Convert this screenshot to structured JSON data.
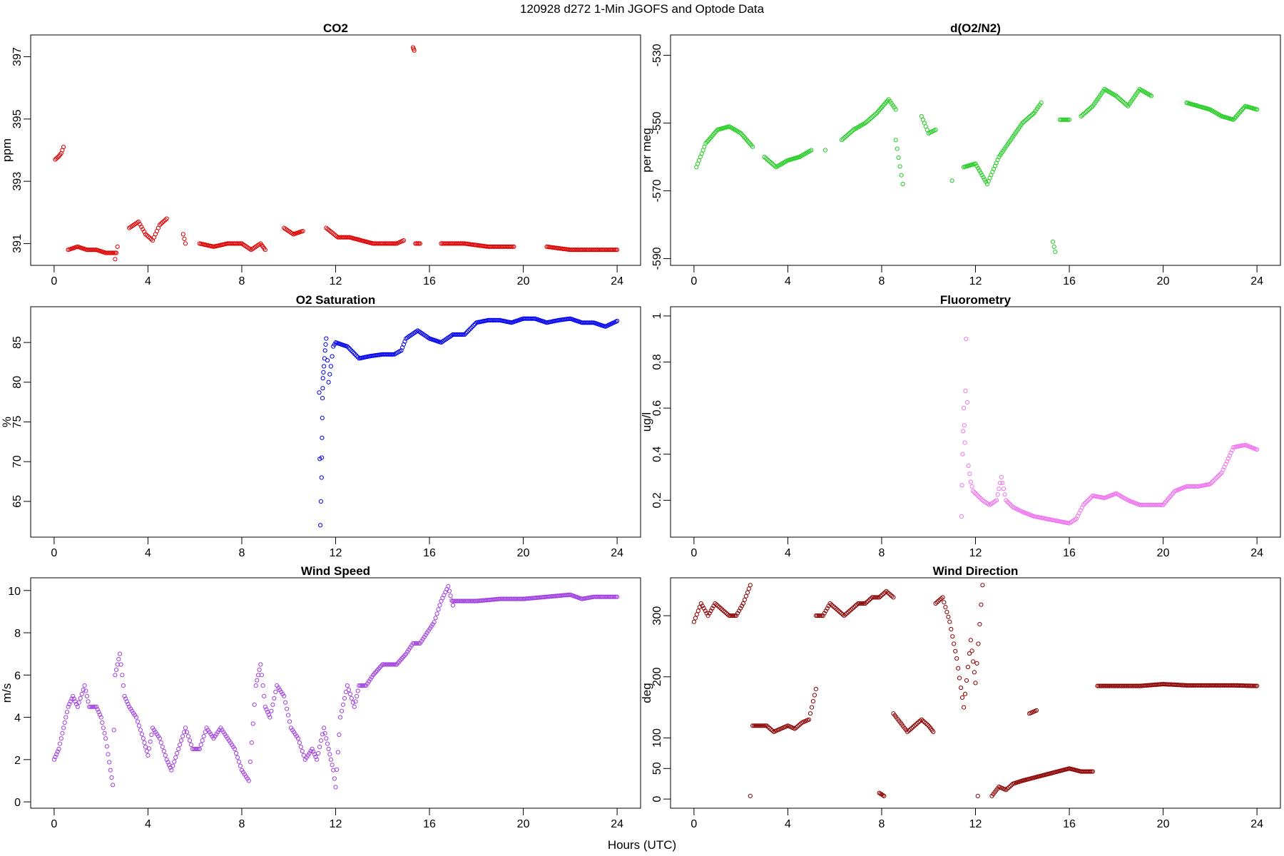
{
  "figure": {
    "title": "120928   d272   1-Min  JGOFS and Optode Data",
    "xlabel": "Hours (UTC)"
  },
  "chart_data": [
    {
      "type": "scatter",
      "title": "CO2",
      "ylabel": "ppm",
      "xlim": [
        -1,
        25
      ],
      "ylim": [
        390.3,
        397.7
      ],
      "xticks": [
        0,
        4,
        8,
        12,
        16,
        20,
        24
      ],
      "yticks": [
        391,
        393,
        395,
        397
      ],
      "color": "#dd0000",
      "rotate_y_ticks": true,
      "segments": [
        {
          "x": [
            0.05,
            0.2,
            0.3,
            0.4
          ],
          "y": [
            393.7,
            393.8,
            393.9,
            394.1
          ]
        },
        {
          "x": [
            0.6,
            1.0,
            1.4,
            1.8,
            2.2,
            2.6
          ],
          "y": [
            390.8,
            390.9,
            390.8,
            390.8,
            390.7,
            390.7
          ]
        },
        {
          "x": [
            2.6,
            2.7
          ],
          "y": [
            390.5,
            390.9
          ]
        },
        {
          "x": [
            3.2,
            3.6,
            3.9,
            4.2,
            4.5,
            4.8
          ],
          "y": [
            391.5,
            391.7,
            391.3,
            391.1,
            391.6,
            391.8
          ]
        },
        {
          "x": [
            5.5,
            5.6
          ],
          "y": [
            391.3,
            391.0
          ]
        },
        {
          "x": [
            6.2,
            6.8,
            7.4,
            8.0,
            8.4,
            8.8,
            9.0
          ],
          "y": [
            391.0,
            390.9,
            391.0,
            391.0,
            390.8,
            391.0,
            390.8
          ]
        },
        {
          "x": [
            9.8,
            10.2,
            10.6
          ],
          "y": [
            391.5,
            391.3,
            391.4
          ]
        },
        {
          "x": [
            11.6,
            12.1,
            12.6,
            13.1,
            13.6,
            14.1,
            14.6,
            14.9
          ],
          "y": [
            391.5,
            391.2,
            391.2,
            391.1,
            391.0,
            391.0,
            391.0,
            391.1
          ]
        },
        {
          "x": [
            15.3,
            15.35
          ],
          "y": [
            397.3,
            397.2
          ]
        },
        {
          "x": [
            15.4,
            15.6
          ],
          "y": [
            391.0,
            391.0
          ]
        },
        {
          "x": [
            16.5,
            17.5,
            18.5,
            19.6
          ],
          "y": [
            391.0,
            391.0,
            390.9,
            390.9
          ]
        },
        {
          "x": [
            21.0,
            22.0,
            23.0,
            24.0
          ],
          "y": [
            390.9,
            390.8,
            390.8,
            390.8
          ]
        }
      ]
    },
    {
      "type": "scatter",
      "title": "d(O2/N2)",
      "ylabel": "per meg",
      "xlim": [
        -1,
        25
      ],
      "ylim": [
        -592,
        -524
      ],
      "xticks": [
        0,
        4,
        8,
        12,
        16,
        20,
        24
      ],
      "yticks": [
        -590,
        -570,
        -550,
        -530
      ],
      "color": "#22cc22",
      "rotate_y_ticks": true,
      "segments": [
        {
          "x": [
            0.1,
            0.5,
            1.0,
            1.5,
            2.0,
            2.5
          ],
          "y": [
            -563,
            -556,
            -552,
            -551,
            -553,
            -557
          ]
        },
        {
          "x": [
            3.0,
            3.5,
            4.0,
            4.5,
            5.0
          ],
          "y": [
            -560,
            -563,
            -561,
            -560,
            -558
          ]
        },
        {
          "x": [
            5.6
          ],
          "y": [
            -558
          ]
        },
        {
          "x": [
            6.3,
            6.8,
            7.3,
            7.8,
            8.3,
            8.6
          ],
          "y": [
            -555,
            -552,
            -550,
            -547,
            -543,
            -546
          ]
        },
        {
          "x": [
            8.6,
            8.9
          ],
          "y": [
            -555,
            -568
          ]
        },
        {
          "x": [
            9.7,
            10.0,
            10.3
          ],
          "y": [
            -548,
            -553,
            -552
          ]
        },
        {
          "x": [
            11.0
          ],
          "y": [
            -567
          ]
        },
        {
          "x": [
            11.5,
            12.0,
            12.5,
            13.0,
            13.5,
            14.0,
            14.5,
            14.8
          ],
          "y": [
            -563,
            -562,
            -568,
            -560,
            -555,
            -550,
            -547,
            -544
          ]
        },
        {
          "x": [
            15.3,
            15.4
          ],
          "y": [
            -585,
            -588
          ]
        },
        {
          "x": [
            15.6,
            16.0
          ],
          "y": [
            -549,
            -549
          ]
        },
        {
          "x": [
            16.5,
            17.0,
            17.5,
            18.0,
            18.5,
            19.0,
            19.5
          ],
          "y": [
            -548,
            -545,
            -540,
            -542,
            -545,
            -540,
            -542
          ]
        },
        {
          "x": [
            21.0,
            21.5,
            22.0,
            22.5,
            23.0,
            23.5,
            24.0
          ],
          "y": [
            -544,
            -545,
            -546,
            -548,
            -549,
            -545,
            -546
          ]
        }
      ]
    },
    {
      "type": "scatter",
      "title": "O2 Saturation",
      "ylabel": "%",
      "xlim": [
        -1,
        25
      ],
      "ylim": [
        60.5,
        89.5
      ],
      "xticks": [
        0,
        4,
        8,
        12,
        16,
        20,
        24
      ],
      "yticks": [
        65,
        70,
        75,
        80,
        85
      ],
      "color": "#0000ee",
      "rotate_y_ticks": true,
      "segments": [
        {
          "x": [
            11.3,
            11.35,
            11.4,
            11.42,
            11.44,
            11.46,
            11.5,
            11.55,
            11.6,
            11.7,
            11.8,
            11.9,
            12.0,
            12.5,
            13.0,
            13.5,
            14.0,
            14.5,
            14.8,
            15.0,
            15.5,
            16.0,
            16.5,
            17.0,
            17.5,
            18.0,
            18.5,
            19.0,
            19.5,
            20.0,
            20.5,
            21.0,
            21.5,
            22.0,
            22.5,
            23.0,
            23.5,
            24.0
          ],
          "y": [
            78.7,
            62.0,
            68.0,
            73.0,
            78.0,
            80.5,
            82.0,
            84.0,
            85.5,
            80.0,
            82.0,
            84.5,
            85.0,
            84.5,
            83.0,
            83.3,
            83.5,
            83.5,
            84.0,
            85.5,
            86.5,
            85.5,
            85.0,
            86.0,
            86.0,
            87.5,
            87.8,
            87.8,
            87.5,
            88.0,
            88.0,
            87.5,
            87.8,
            88.0,
            87.5,
            87.5,
            87.0,
            87.7
          ]
        }
      ]
    },
    {
      "type": "scatter",
      "title": "Fluorometry",
      "ylabel": "ug/l",
      "xlim": [
        -1,
        25
      ],
      "ylim": [
        0.04,
        1.04
      ],
      "xticks": [
        0,
        4,
        8,
        12,
        16,
        20,
        24
      ],
      "yticks": [
        0.2,
        0.4,
        0.6,
        0.8,
        1.0
      ],
      "color": "#ee77ee",
      "rotate_y_ticks": true,
      "segments": [
        {
          "x": [
            11.4,
            11.45,
            11.5,
            11.55,
            11.6,
            11.7,
            11.8,
            11.9,
            12.0,
            12.3,
            12.6,
            12.9,
            13.1,
            13.3,
            13.6,
            14.0,
            14.5,
            15.0,
            15.5,
            16.0,
            16.3,
            16.6,
            17.0,
            17.5,
            18.0,
            18.5,
            19.0,
            19.5,
            20.0,
            20.5,
            21.0,
            21.5,
            22.0,
            22.5,
            23.0,
            23.5,
            24.0
          ],
          "y": [
            0.13,
            0.4,
            0.6,
            0.45,
            0.9,
            0.35,
            0.28,
            0.24,
            0.23,
            0.2,
            0.18,
            0.2,
            0.3,
            0.2,
            0.17,
            0.15,
            0.13,
            0.12,
            0.11,
            0.1,
            0.12,
            0.18,
            0.22,
            0.21,
            0.23,
            0.2,
            0.18,
            0.18,
            0.18,
            0.24,
            0.26,
            0.26,
            0.27,
            0.32,
            0.43,
            0.44,
            0.42
          ]
        }
      ]
    },
    {
      "type": "scatter",
      "title": "Wind Speed",
      "ylabel": "m/s",
      "xlim": [
        -1,
        25
      ],
      "ylim": [
        -0.3,
        10.6
      ],
      "xticks": [
        0,
        4,
        8,
        12,
        16,
        20,
        24
      ],
      "yticks": [
        0,
        2,
        4,
        6,
        8,
        10
      ],
      "color": "#a040e0",
      "rotate_y_ticks": false,
      "segments": [
        {
          "x": [
            0.0,
            0.2,
            0.4,
            0.6,
            0.8,
            1.0,
            1.3,
            1.5,
            1.8,
            2.0,
            2.2,
            2.4,
            2.5,
            2.6,
            2.8,
            3.0,
            3.2,
            3.5,
            3.8,
            4.0,
            4.2,
            4.5,
            4.8,
            5.0,
            5.3,
            5.6,
            5.9,
            6.2,
            6.5,
            6.8,
            7.1,
            7.4,
            7.7,
            8.0,
            8.3,
            8.6,
            8.8,
            9.0,
            9.2,
            9.5,
            9.8,
            10.1,
            10.4,
            10.7,
            11.0,
            11.2,
            11.5,
            11.7,
            11.9,
            12.0,
            12.2,
            12.5,
            12.8,
            13.0,
            13.3,
            13.6,
            14.0,
            14.3,
            14.6,
            15.0,
            15.3,
            15.6,
            15.9,
            16.2,
            16.5,
            16.8,
            17.0
          ],
          "y": [
            2.0,
            2.5,
            3.5,
            4.5,
            5.0,
            4.5,
            5.5,
            4.5,
            4.5,
            4.0,
            3.0,
            1.5,
            0.8,
            6.0,
            7.0,
            5.0,
            4.5,
            4.0,
            3.0,
            2.2,
            3.5,
            3.0,
            2.0,
            1.5,
            2.5,
            3.5,
            2.5,
            2.5,
            3.5,
            3.0,
            3.5,
            3.0,
            2.5,
            1.5,
            1.0,
            5.5,
            6.5,
            4.5,
            4.0,
            5.5,
            5.0,
            3.5,
            3.0,
            2.0,
            2.5,
            2.0,
            3.5,
            2.5,
            1.5,
            0.7,
            4.0,
            5.5,
            4.5,
            5.5,
            5.5,
            6.0,
            6.5,
            6.5,
            6.5,
            7.0,
            7.5,
            7.5,
            8.0,
            8.5,
            9.5,
            10.2,
            9.3
          ]
        },
        {
          "x": [
            17.0,
            18.0,
            19.0,
            20.0,
            21.0,
            22.0,
            22.5,
            23.0,
            24.0
          ],
          "y": [
            9.5,
            9.5,
            9.6,
            9.6,
            9.7,
            9.8,
            9.6,
            9.7,
            9.7
          ]
        }
      ]
    },
    {
      "type": "scatter",
      "title": "Wind Direction",
      "ylabel": "deg",
      "xlim": [
        -1,
        25
      ],
      "ylim": [
        -15,
        362
      ],
      "xticks": [
        0,
        4,
        8,
        12,
        16,
        20,
        24
      ],
      "yticks": [
        0,
        50,
        100,
        200,
        300
      ],
      "color": "#8b0000",
      "rotate_y_ticks": true,
      "segments": [
        {
          "x": [
            0.0,
            0.3,
            0.6,
            0.9,
            1.2,
            1.5,
            1.8,
            2.1,
            2.4
          ],
          "y": [
            290,
            320,
            300,
            320,
            310,
            300,
            300,
            320,
            350
          ]
        },
        {
          "x": [
            2.4
          ],
          "y": [
            5
          ]
        },
        {
          "x": [
            2.5,
            2.8,
            3.1,
            3.4,
            3.7,
            4.0,
            4.3,
            4.6,
            4.9,
            5.2
          ],
          "y": [
            120,
            120,
            120,
            110,
            115,
            120,
            115,
            125,
            130,
            180
          ]
        },
        {
          "x": [
            5.2,
            5.5,
            5.8,
            6.1,
            6.4,
            6.7,
            7.0,
            7.3,
            7.6,
            7.9,
            8.2,
            8.5
          ],
          "y": [
            300,
            300,
            320,
            310,
            300,
            310,
            320,
            320,
            330,
            330,
            340,
            330
          ]
        },
        {
          "x": [
            7.9,
            8.1
          ],
          "y": [
            10,
            5
          ]
        },
        {
          "x": [
            8.5,
            8.8,
            9.1,
            9.4,
            9.7,
            10.0,
            10.2
          ],
          "y": [
            140,
            125,
            110,
            120,
            130,
            120,
            110
          ]
        },
        {
          "x": [
            10.3,
            10.6,
            10.9,
            11.2,
            11.5,
            11.8,
            12.0,
            12.3
          ],
          "y": [
            320,
            330,
            290,
            230,
            150,
            260,
            190,
            350
          ]
        },
        {
          "x": [
            12.1
          ],
          "y": [
            5
          ]
        },
        {
          "x": [
            12.7,
            13.0,
            13.3,
            13.6,
            14.0,
            14.5,
            15.0,
            15.5,
            16.0,
            16.5,
            17.0
          ],
          "y": [
            5,
            20,
            15,
            25,
            30,
            35,
            40,
            45,
            50,
            45,
            45
          ]
        },
        {
          "x": [
            14.3,
            14.6
          ],
          "y": [
            140,
            145
          ]
        },
        {
          "x": [
            17.2,
            18.0,
            19.0,
            20.0,
            21.0,
            22.0,
            23.0,
            24.0
          ],
          "y": [
            185,
            185,
            185,
            188,
            186,
            186,
            186,
            185
          ]
        }
      ]
    }
  ]
}
